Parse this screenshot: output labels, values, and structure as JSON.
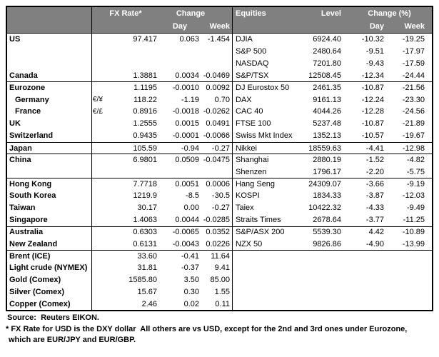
{
  "table": {
    "fx_header": {
      "rate": "FX Rate*",
      "change": "Change",
      "day": "Day",
      "week": "Week"
    },
    "eq_header": {
      "name": "Equities",
      "level": "Level",
      "change": "Change (%)",
      "day": "Day",
      "week": "Week"
    },
    "rows": [
      {
        "sep": false,
        "indent": false,
        "fx": {
          "name": "US",
          "pair": "",
          "rate": "97.417",
          "day": "0.063",
          "week": "-1.454"
        },
        "eq": {
          "name": "DJIA",
          "level": "6924.40",
          "day": "-10.32",
          "week": "-19.25"
        }
      },
      {
        "sep": false,
        "indent": false,
        "fx": {
          "name": "",
          "pair": "",
          "rate": "",
          "day": "",
          "week": ""
        },
        "eq": {
          "name": "S&P 500",
          "level": "2480.64",
          "day": "-9.51",
          "week": "-17.97"
        }
      },
      {
        "sep": false,
        "indent": false,
        "fx": {
          "name": "",
          "pair": "",
          "rate": "",
          "day": "",
          "week": ""
        },
        "eq": {
          "name": "NASDAQ",
          "level": "7201.80",
          "day": "-9.43",
          "week": "-17.59"
        }
      },
      {
        "sep": false,
        "indent": false,
        "fx": {
          "name": "Canada",
          "pair": "",
          "rate": "1.3881",
          "day": "0.0034",
          "week": "-0.0469"
        },
        "eq": {
          "name": "S&P/TSX",
          "level": "12508.45",
          "day": "-12.34",
          "week": "-24.44"
        }
      },
      {
        "sep": true,
        "indent": false,
        "fx": {
          "name": "Eurozone",
          "pair": "",
          "rate": "1.1195",
          "day": "-0.0010",
          "week": "0.0092"
        },
        "eq": {
          "name": "DJ Eurostox 50",
          "level": "2461.35",
          "day": "-10.87",
          "week": "-21.56"
        }
      },
      {
        "sep": false,
        "indent": true,
        "fx": {
          "name": "Germany",
          "pair": "€/¥",
          "rate": "118.22",
          "day": "-1.19",
          "week": "0.70"
        },
        "eq": {
          "name": "DAX",
          "level": "9161.13",
          "day": "-12.24",
          "week": "-23.30"
        }
      },
      {
        "sep": false,
        "indent": true,
        "fx": {
          "name": "France",
          "pair": "€/£",
          "rate": "0.8916",
          "day": "-0.0018",
          "week": "-0.0262"
        },
        "eq": {
          "name": "CAC 40",
          "level": "4044.26",
          "day": "-12.28",
          "week": "-24.56"
        }
      },
      {
        "sep": false,
        "indent": false,
        "fx": {
          "name": "UK",
          "pair": "",
          "rate": "1.2555",
          "day": "0.0015",
          "week": "0.0491"
        },
        "eq": {
          "name": "FTSE 100",
          "level": "5237.48",
          "day": "-10.87",
          "week": "-21.89"
        }
      },
      {
        "sep": false,
        "indent": false,
        "fx": {
          "name": "Switzerland",
          "pair": "",
          "rate": "0.9435",
          "day": "-0.0001",
          "week": "-0.0066"
        },
        "eq": {
          "name": "Swiss Mkt Index",
          "level": "1352.13",
          "day": "-10.57",
          "week": "-19.67"
        }
      },
      {
        "sep": true,
        "indent": false,
        "fx": {
          "name": "Japan",
          "pair": "",
          "rate": "105.59",
          "day": "-0.94",
          "week": "-0.27"
        },
        "eq": {
          "name": "Nikkei",
          "level": "18559.63",
          "day": "-4.41",
          "week": "-12.98"
        }
      },
      {
        "sep": true,
        "indent": false,
        "fx": {
          "name": "China",
          "pair": "",
          "rate": "6.9801",
          "day": "0.0509",
          "week": "-0.0475"
        },
        "eq": {
          "name": "Shanghai",
          "level": "2880.19",
          "day": "-1.52",
          "week": "-4.82"
        }
      },
      {
        "sep": false,
        "indent": false,
        "fx": {
          "name": "",
          "pair": "",
          "rate": "",
          "day": "",
          "week": ""
        },
        "eq": {
          "name": "Shenzen",
          "level": "1796.17",
          "day": "-2.20",
          "week": "-5.75"
        }
      },
      {
        "sep": true,
        "indent": false,
        "fx": {
          "name": "Hong Kong",
          "pair": "",
          "rate": "7.7718",
          "day": "0.0051",
          "week": "0.0006"
        },
        "eq": {
          "name": "Hang Seng",
          "level": "24309.07",
          "day": "-3.66",
          "week": "-9.19"
        }
      },
      {
        "sep": false,
        "indent": false,
        "fx": {
          "name": "South Korea",
          "pair": "",
          "rate": "1219.9",
          "day": "-8.5",
          "week": "-30.5"
        },
        "eq": {
          "name": "KOSPI",
          "level": "1834.33",
          "day": "-3.87",
          "week": "-12.03"
        }
      },
      {
        "sep": false,
        "indent": false,
        "fx": {
          "name": "Taiwan",
          "pair": "",
          "rate": "30.17",
          "day": "0.00",
          "week": "-0.27"
        },
        "eq": {
          "name": "Taiex",
          "level": "10422.32",
          "day": "-4.33",
          "week": "-9.49"
        }
      },
      {
        "sep": false,
        "indent": false,
        "fx": {
          "name": "Singapore",
          "pair": "",
          "rate": "1.4063",
          "day": "0.0044",
          "week": "-0.0285"
        },
        "eq": {
          "name": "Straits Times",
          "level": "2678.64",
          "day": "-3.77",
          "week": "-11.25"
        }
      },
      {
        "sep": true,
        "indent": false,
        "fx": {
          "name": "Australia",
          "pair": "",
          "rate": "0.6303",
          "day": "-0.0065",
          "week": "0.0352"
        },
        "eq": {
          "name": "S&P/ASX  200",
          "level": "5539.30",
          "day": "4.42",
          "week": "-10.89"
        }
      },
      {
        "sep": false,
        "indent": false,
        "fx": {
          "name": "New Zealand",
          "pair": "",
          "rate": "0.6131",
          "day": "-0.0043",
          "week": "0.0226"
        },
        "eq": {
          "name": "NZX 50",
          "level": "9826.86",
          "day": "-4.90",
          "week": "-13.99"
        }
      },
      {
        "sep": true,
        "indent": false,
        "fx": {
          "name": "Brent (ICE)",
          "pair": "",
          "rate": "33.60",
          "day": "-0.41",
          "week": "11.64"
        },
        "eq": {
          "name": "",
          "level": "",
          "day": "",
          "week": ""
        }
      },
      {
        "sep": false,
        "indent": false,
        "fx": {
          "name": "Light crude (NYMEX)",
          "pair": "",
          "rate": "31.81",
          "day": "-0.37",
          "week": "9.41"
        },
        "eq": {
          "name": "",
          "level": "",
          "day": "",
          "week": ""
        }
      },
      {
        "sep": false,
        "indent": false,
        "fx": {
          "name": "Gold (Comex)",
          "pair": "",
          "rate": "1585.80",
          "day": "3.50",
          "week": "85.00"
        },
        "eq": {
          "name": "",
          "level": "",
          "day": "",
          "week": ""
        }
      },
      {
        "sep": false,
        "indent": false,
        "fx": {
          "name": "Silver (Comex)",
          "pair": "",
          "rate": "15.67",
          "day": "0.30",
          "week": "1.55"
        },
        "eq": {
          "name": "",
          "level": "",
          "day": "",
          "week": ""
        }
      },
      {
        "sep": false,
        "indent": false,
        "fx": {
          "name": "Copper (Comex)",
          "pair": "",
          "rate": "2.46",
          "day": "0.02",
          "week": "0.11"
        },
        "eq": {
          "name": "",
          "level": "",
          "day": "",
          "week": ""
        }
      }
    ]
  },
  "footer": {
    "source": "Source:  Reuters EIKON.",
    "footnote_line1": "* FX Rate for USD is the DXY dollar  All others are vs USD, except for the 2nd and 3rd ones under Eurozone,",
    "footnote_line2": "which are EUR/JPY and EUR/GBP."
  },
  "colors": {
    "header_bg": "#808080",
    "header_text": "#ffffff",
    "border": "#000000"
  }
}
